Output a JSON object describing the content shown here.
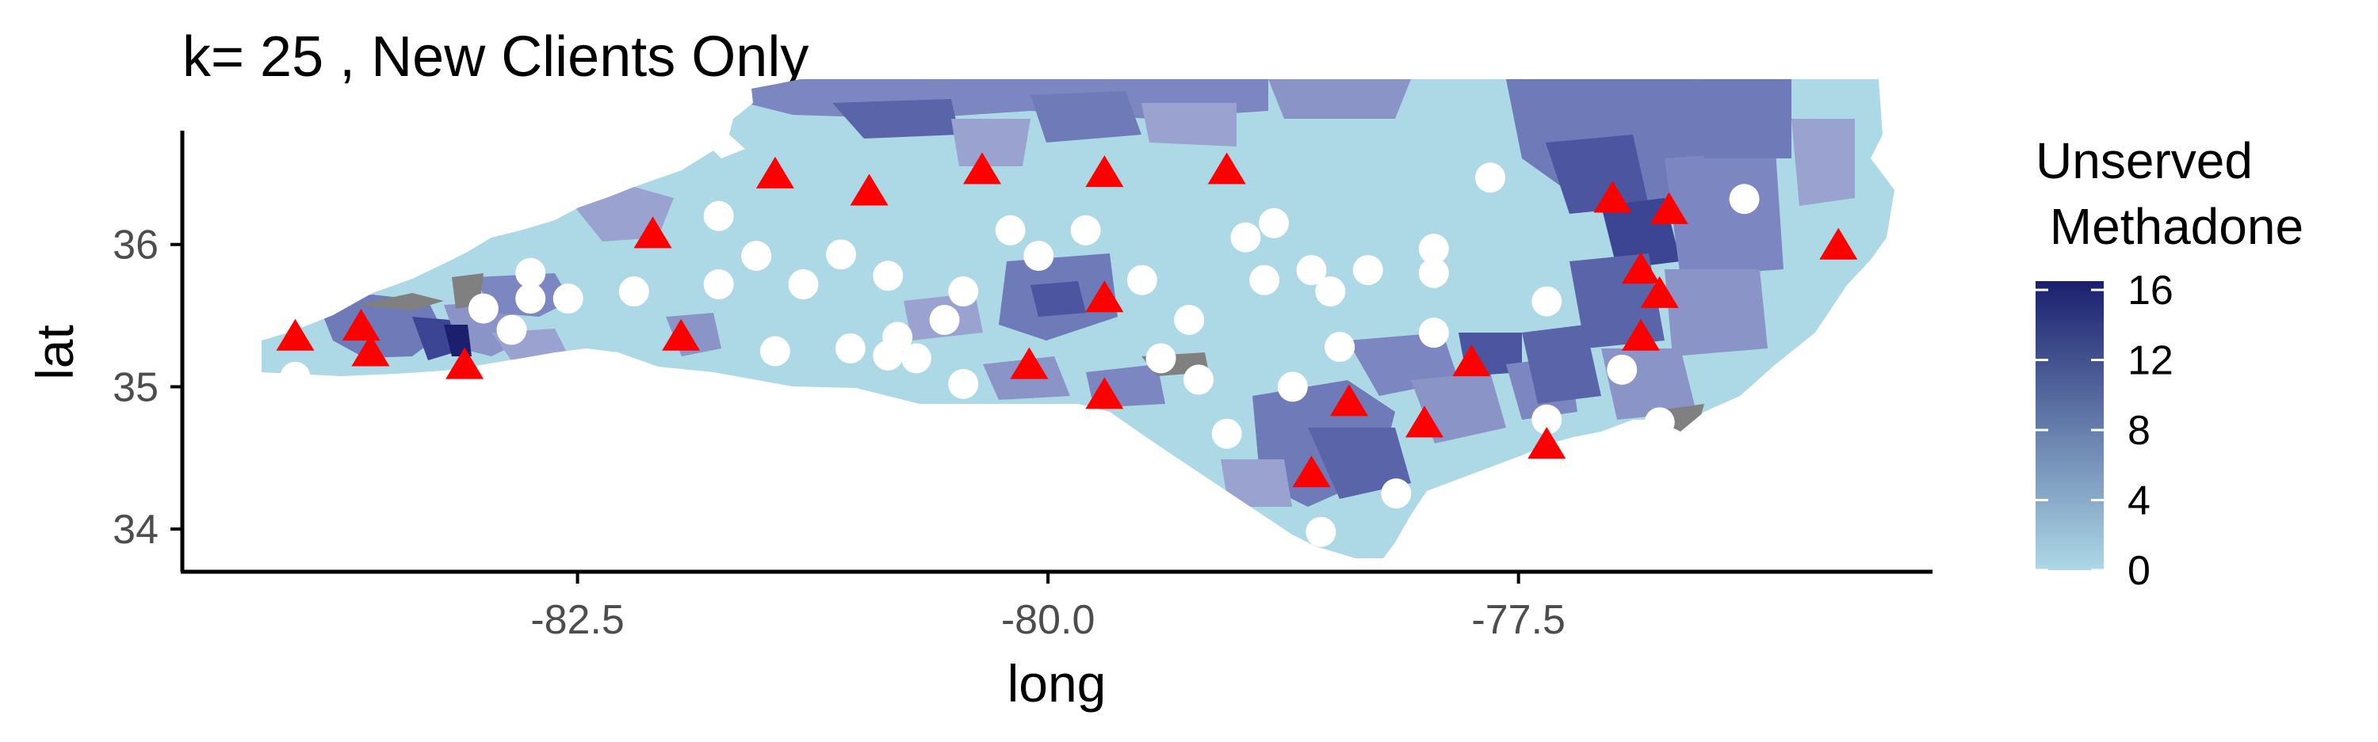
{
  "title": "k= 25 , New Clients Only",
  "axes": {
    "x": {
      "label": "long",
      "ticks": [
        -82.5,
        -80.0,
        -77.5
      ],
      "tick_labels": [
        "-82.5",
        "-80.0",
        "-77.5"
      ],
      "range": [
        -84.6,
        -75.3
      ]
    },
    "y": {
      "label": "lat",
      "ticks": [
        34,
        35,
        36
      ],
      "tick_labels": [
        "34",
        "35",
        "36"
      ],
      "range": [
        33.7,
        36.8
      ]
    }
  },
  "legend": {
    "title_line1": "Unserved",
    "title_line2": " Methadone",
    "breaks": [
      0,
      4,
      8,
      12,
      16
    ],
    "labels": [
      "0",
      "4",
      "8",
      "12",
      "16"
    ],
    "range": [
      0,
      16.5
    ],
    "low_color": "#add8e6",
    "high_color": "#1b1f6e",
    "na_color": "#808080"
  },
  "colors": {
    "facility_marker": "#ff0000",
    "client_marker": "#ffffff",
    "base_fill": "#add8e6"
  },
  "chart_data": {
    "type": "scatter",
    "map": "North Carolina counties / tracts shaded by unserved methadone",
    "triangles": [
      [
        -84.0,
        35.33
      ],
      [
        -83.65,
        35.4
      ],
      [
        -83.6,
        35.22
      ],
      [
        -83.1,
        35.13
      ],
      [
        -82.1,
        36.05
      ],
      [
        -81.95,
        35.33
      ],
      [
        -81.45,
        36.47
      ],
      [
        -80.95,
        36.35
      ],
      [
        -80.35,
        36.5
      ],
      [
        -79.7,
        36.48
      ],
      [
        -79.05,
        36.5
      ],
      [
        -80.1,
        35.13
      ],
      [
        -79.7,
        35.6
      ],
      [
        -79.7,
        34.92
      ],
      [
        -78.6,
        34.37
      ],
      [
        -78.4,
        34.87
      ],
      [
        -78.0,
        34.72
      ],
      [
        -77.75,
        35.15
      ],
      [
        -77.35,
        34.57
      ],
      [
        -77.0,
        36.3
      ],
      [
        -76.85,
        35.8
      ],
      [
        -76.75,
        35.63
      ],
      [
        -76.7,
        36.22
      ],
      [
        -76.85,
        35.33
      ],
      [
        -75.8,
        35.97
      ]
    ],
    "circles": [
      [
        -84.0,
        35.07
      ],
      [
        -83.0,
        35.55
      ],
      [
        -82.75,
        35.8
      ],
      [
        -82.75,
        35.62
      ],
      [
        -82.85,
        35.4
      ],
      [
        -82.55,
        35.62
      ],
      [
        -82.2,
        35.67
      ],
      [
        -81.75,
        36.2
      ],
      [
        -81.75,
        35.72
      ],
      [
        -81.55,
        35.92
      ],
      [
        -81.45,
        35.25
      ],
      [
        -81.3,
        35.72
      ],
      [
        -81.1,
        35.93
      ],
      [
        -81.05,
        35.27
      ],
      [
        -80.85,
        35.78
      ],
      [
        -80.8,
        35.35
      ],
      [
        -80.85,
        35.22
      ],
      [
        -80.7,
        35.2
      ],
      [
        -80.55,
        35.47
      ],
      [
        -80.45,
        35.02
      ],
      [
        -80.45,
        35.67
      ],
      [
        -80.2,
        36.1
      ],
      [
        -80.05,
        35.92
      ],
      [
        -79.8,
        36.1
      ],
      [
        -79.5,
        35.75
      ],
      [
        -79.4,
        35.2
      ],
      [
        -79.25,
        35.47
      ],
      [
        -79.2,
        35.05
      ],
      [
        -79.05,
        34.67
      ],
      [
        -78.95,
        36.05
      ],
      [
        -78.85,
        35.75
      ],
      [
        -78.8,
        36.15
      ],
      [
        -78.7,
        35.0
      ],
      [
        -78.6,
        35.82
      ],
      [
        -78.5,
        35.67
      ],
      [
        -78.45,
        35.28
      ],
      [
        -78.3,
        35.82
      ],
      [
        -78.15,
        34.25
      ],
      [
        -77.95,
        35.38
      ],
      [
        -77.95,
        35.8
      ],
      [
        -77.95,
        35.97
      ],
      [
        -77.65,
        36.47
      ],
      [
        -77.35,
        35.6
      ],
      [
        -77.35,
        34.77
      ],
      [
        -76.95,
        35.12
      ],
      [
        -76.75,
        34.75
      ],
      [
        -76.3,
        36.32
      ],
      [
        -78.55,
        33.98
      ]
    ]
  }
}
